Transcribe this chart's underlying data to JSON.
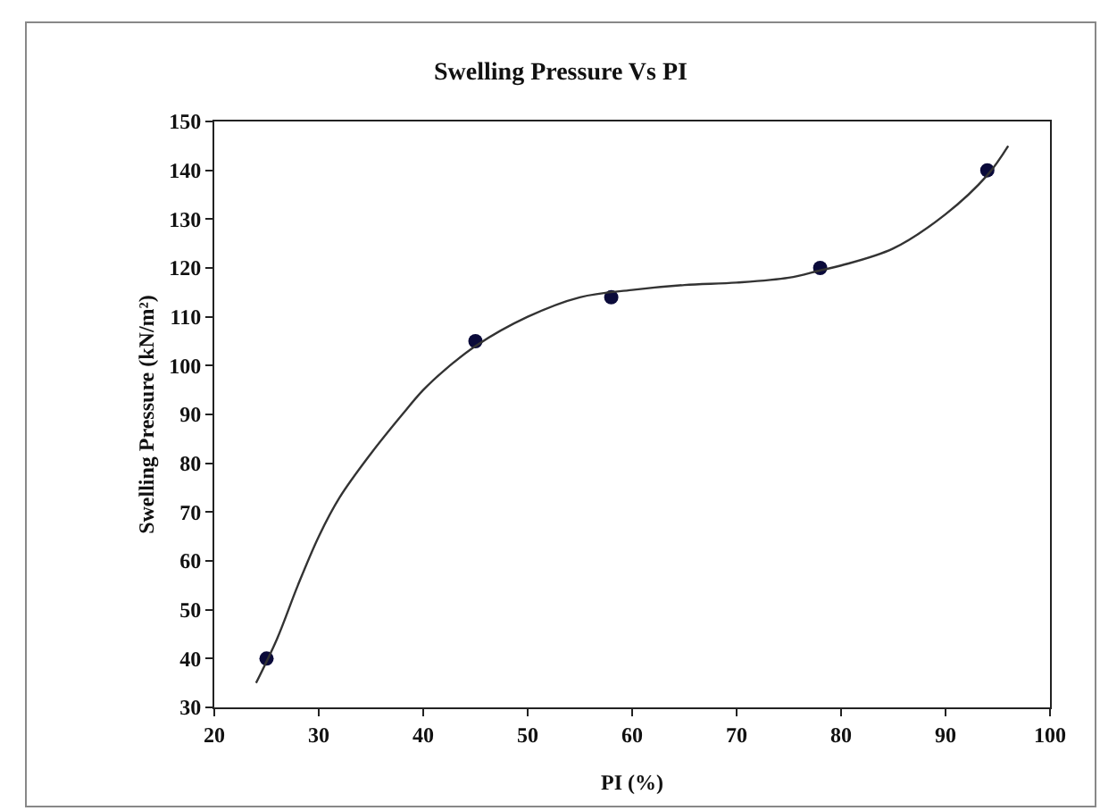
{
  "chart_data": {
    "type": "scatter",
    "title": "Swelling Pressure Vs PI",
    "xlabel": "PI (%)",
    "ylabel": "Swelling Pressure (kN/m²)",
    "xlim": [
      20,
      100
    ],
    "xticks": [
      20,
      30,
      40,
      50,
      60,
      70,
      80,
      90,
      100
    ],
    "ylim": [
      30,
      150
    ],
    "yticks": [
      30,
      40,
      50,
      60,
      70,
      80,
      90,
      100,
      110,
      120,
      130,
      140,
      150
    ],
    "grid": false,
    "marker": "circle",
    "series": [
      {
        "color": "#0a0a3a",
        "x": [
          25,
          45,
          58,
          78,
          94
        ],
        "values": [
          40,
          105,
          114,
          120,
          140
        ]
      },
      {
        "type": "line",
        "color": "#333333",
        "marker": "none",
        "line_style": "solid",
        "x": [
          24,
          26,
          28,
          30,
          32,
          35,
          38,
          40,
          42,
          45,
          50,
          55,
          60,
          65,
          70,
          75,
          78,
          80,
          85,
          90,
          94,
          96
        ],
        "values": [
          35,
          44,
          55,
          65,
          73,
          82,
          90,
          95,
          99,
          104,
          110,
          114,
          115.5,
          116.5,
          117,
          118,
          119.5,
          120.5,
          124,
          131,
          139,
          145
        ]
      }
    ]
  }
}
